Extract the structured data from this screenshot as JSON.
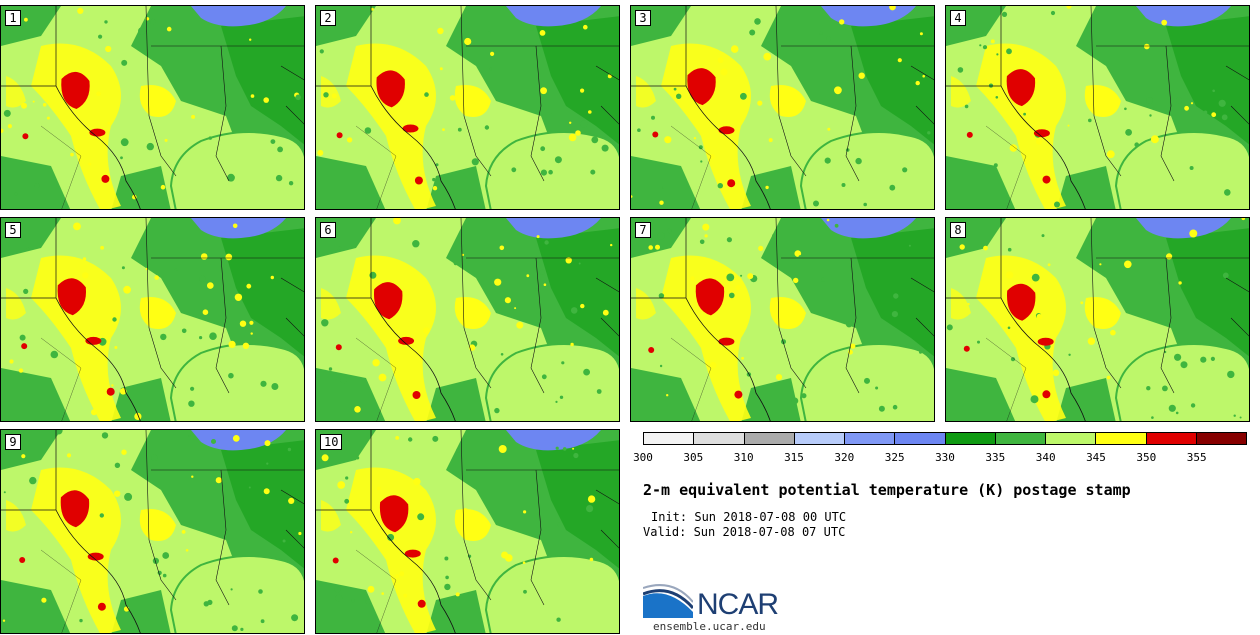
{
  "colors": {
    "land_green_dark": "#0f9a12",
    "land_green": "#3fb53f",
    "land_light": "#bdf76a",
    "yellow": "#ffff14",
    "red": "#e00000",
    "lake": "#6d86f2",
    "border": "#111111"
  },
  "members": [
    {
      "label": "1"
    },
    {
      "label": "2"
    },
    {
      "label": "3"
    },
    {
      "label": "4"
    },
    {
      "label": "5"
    },
    {
      "label": "6"
    },
    {
      "label": "7"
    },
    {
      "label": "8"
    },
    {
      "label": "9"
    },
    {
      "label": "10"
    }
  ],
  "colorbar": {
    "segments": [
      "#f3f3f3",
      "#dedede",
      "#ababab",
      "#b8ccfa",
      "#8098f5",
      "#6d86f2",
      "#0f9a12",
      "#3fb53f",
      "#bdf76a",
      "#ffff14",
      "#e00000",
      "#870000"
    ],
    "tick_labels": [
      "300",
      "305",
      "310",
      "315",
      "320",
      "325",
      "330",
      "335",
      "340",
      "345",
      "350",
      "355"
    ]
  },
  "title": "2-m equivalent potential temperature (K) postage stamp",
  "init": "Init: Sun 2018-07-08 00 UTC",
  "valid": "Valid: Sun 2018-07-08 07 UTC",
  "logo": {
    "text": "NCAR",
    "site": "ensemble.ucar.edu"
  }
}
